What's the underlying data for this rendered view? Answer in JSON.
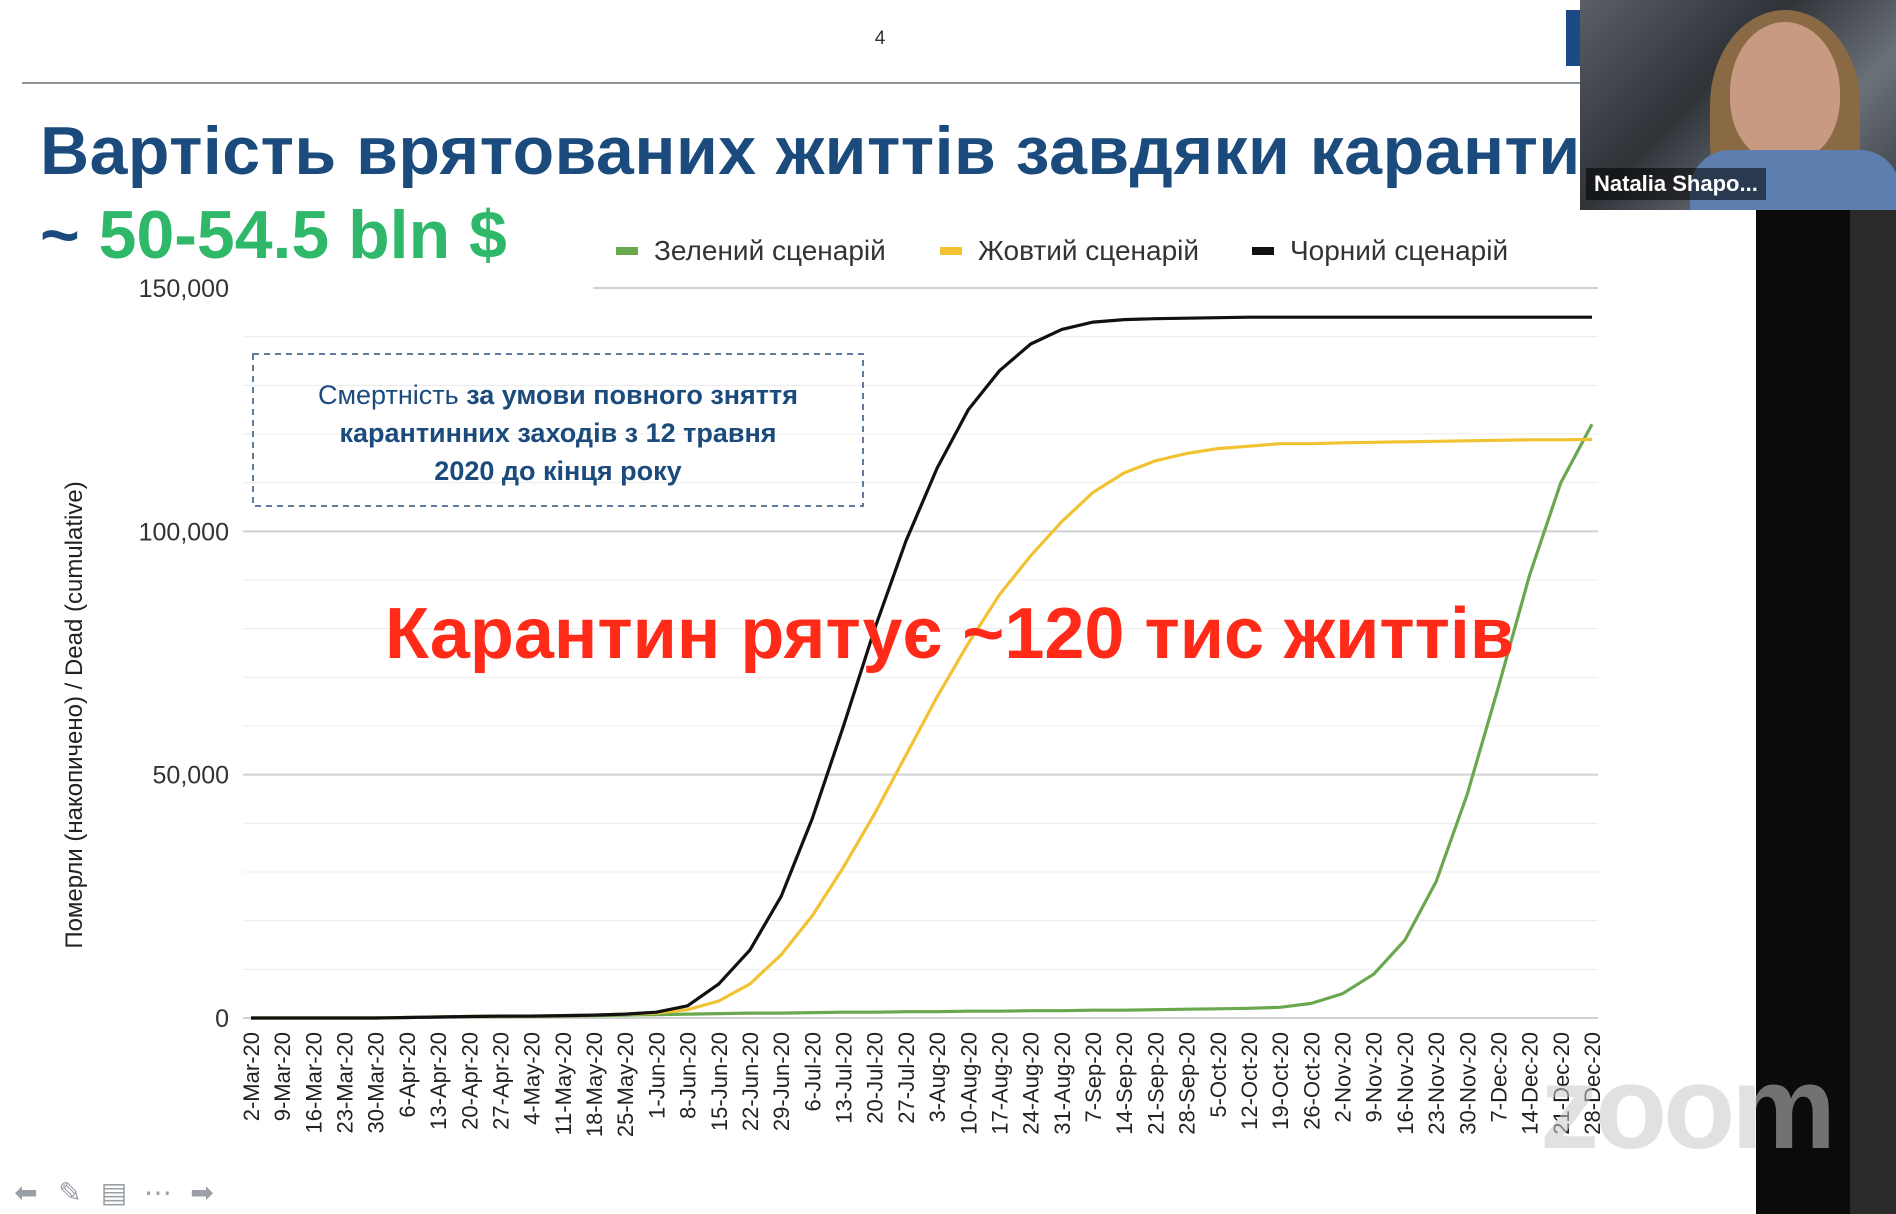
{
  "slide": {
    "page_number": "4",
    "title": "Вартість врятованих життів завдяки каранти",
    "subtitle_tilde": "~",
    "subtitle_amount": "50-54.5 bln $",
    "annotation_part1": "Смертність ",
    "annotation_part2": "за умови повного зняття карантинних заходів з 12 травня 2020 до кінця року",
    "highlight": "Карантин рятує ~120 тис життів"
  },
  "video": {
    "participant_name": "Natalia Shapo..."
  },
  "watermark": "zoom",
  "colors": {
    "green": "#6aa84f",
    "yellow": "#f1c232",
    "black": "#111111",
    "title": "#1b4a7d",
    "highlight": "#ff2a17"
  },
  "chart_data": {
    "type": "line",
    "ylabel": "Померли (накопичено) / Dead (cumulative)",
    "xlabel": "",
    "ylim": [
      0,
      150000
    ],
    "y_ticks": [
      0,
      50000,
      100000,
      150000
    ],
    "y_tick_labels": [
      "0",
      "50,000",
      "100,000",
      "150,000"
    ],
    "grid": true,
    "legend_position": "top-right",
    "categories": [
      "2-Mar-20",
      "9-Mar-20",
      "16-Mar-20",
      "23-Mar-20",
      "30-Mar-20",
      "6-Apr-20",
      "13-Apr-20",
      "20-Apr-20",
      "27-Apr-20",
      "4-May-20",
      "11-May-20",
      "18-May-20",
      "25-May-20",
      "1-Jun-20",
      "8-Jun-20",
      "15-Jun-20",
      "22-Jun-20",
      "29-Jun-20",
      "6-Jul-20",
      "13-Jul-20",
      "20-Jul-20",
      "27-Jul-20",
      "3-Aug-20",
      "10-Aug-20",
      "17-Aug-20",
      "24-Aug-20",
      "31-Aug-20",
      "7-Sep-20",
      "14-Sep-20",
      "21-Sep-20",
      "28-Sep-20",
      "5-Oct-20",
      "12-Oct-20",
      "19-Oct-20",
      "26-Oct-20",
      "2-Nov-20",
      "9-Nov-20",
      "16-Nov-20",
      "23-Nov-20",
      "30-Nov-20",
      "7-Dec-20",
      "14-Dec-20",
      "21-Dec-20",
      "28-Dec-20"
    ],
    "series": [
      {
        "name": "Зелений сценарій",
        "color": "#6aa84f",
        "values": [
          0,
          0,
          0,
          0,
          0,
          100,
          200,
          300,
          300,
          400,
          400,
          500,
          600,
          700,
          800,
          900,
          1000,
          1000,
          1100,
          1200,
          1200,
          1300,
          1300,
          1400,
          1400,
          1500,
          1500,
          1600,
          1600,
          1700,
          1800,
          1900,
          2000,
          2200,
          3000,
          5000,
          9000,
          16000,
          28000,
          46000,
          68000,
          91000,
          110000,
          122000
        ]
      },
      {
        "name": "Жовтий сценарій",
        "color": "#f1c232",
        "values": [
          0,
          0,
          0,
          0,
          0,
          100,
          200,
          300,
          400,
          400,
          500,
          600,
          800,
          1000,
          1700,
          3500,
          7000,
          13000,
          21000,
          31000,
          42000,
          54000,
          66000,
          77000,
          87000,
          95000,
          102000,
          108000,
          112000,
          114500,
          116000,
          117000,
          117500,
          118000,
          118000,
          118200,
          118300,
          118400,
          118500,
          118600,
          118700,
          118800,
          118800,
          118900
        ]
      },
      {
        "name": "Чорний сценарій",
        "color": "#111111",
        "values": [
          0,
          0,
          0,
          0,
          0,
          100,
          200,
          300,
          400,
          400,
          500,
          600,
          800,
          1200,
          2500,
          7000,
          14000,
          25000,
          41000,
          60000,
          80000,
          98000,
          113000,
          125000,
          133000,
          138500,
          141500,
          143000,
          143500,
          143700,
          143800,
          143900,
          144000,
          144000,
          144000,
          144000,
          144000,
          144000,
          144000,
          144000,
          144000,
          144000,
          144000,
          144000
        ]
      }
    ]
  }
}
